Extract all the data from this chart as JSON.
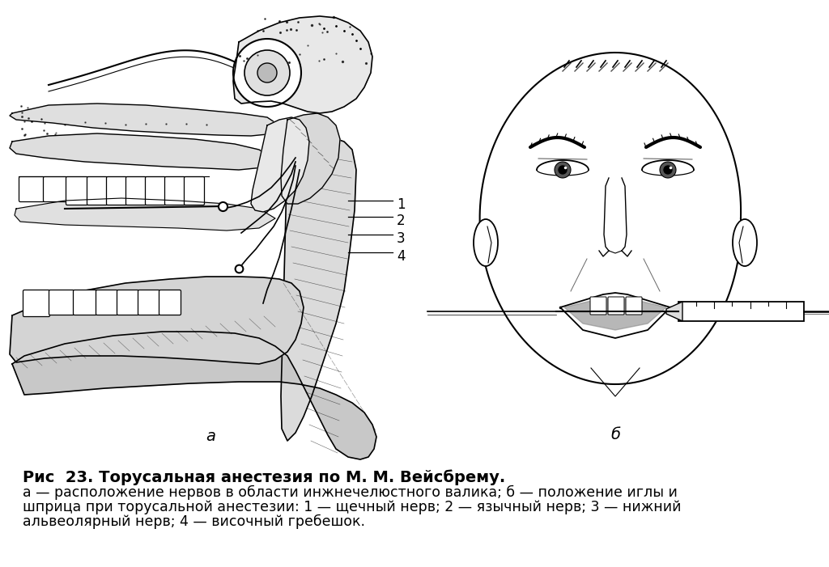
{
  "background_color": "#ffffff",
  "figure_width": 10.24,
  "figure_height": 7.01,
  "dpi": 100,
  "title_line": "Рис  23. Торусальная анестезия по М. М. Вейсбрему.",
  "caption_line1": "а — расположение нервов в области инжнечелюстного валика; б — положение иглы и",
  "caption_line2": "шприца при торусальной анестезии: 1 — щечный нерв; 2 — язычный нерв; 3 — нижний",
  "caption_line3": "альвеолярный нерв; 4 — височный гребешок.",
  "label_a": "а",
  "label_b": "б",
  "label_1": "1",
  "label_2": "2",
  "label_3": "3",
  "label_4": "4",
  "title_fontsize": 14,
  "caption_fontsize": 12.5,
  "label_fontsize": 14,
  "number_fontsize": 12
}
